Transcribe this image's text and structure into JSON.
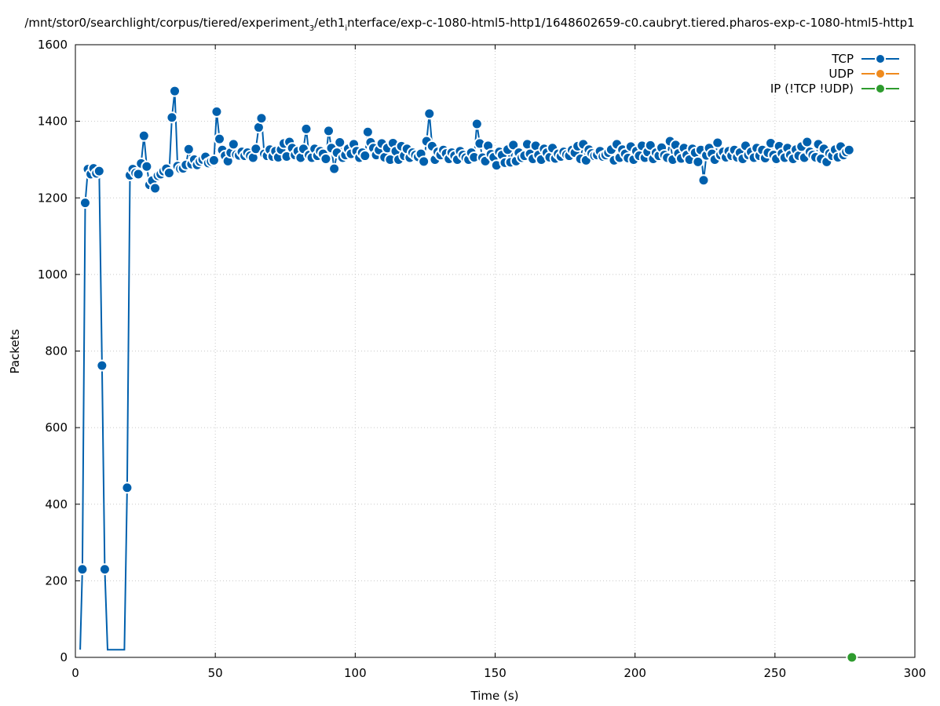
{
  "chart_data": {
    "type": "line",
    "title": "/mnt/stor0/searchlight/corpus/tiered/experiment_3/eth1_interface/exp-c-1080-html5-http1/1648602659-c0.caubryt.tiered.pharos-exp-c-1080-html5-http1",
    "title_parts": {
      "a": "/mnt/stor0/searchlight/corpus/tiered/experiment",
      "a_sub": "3",
      "b": "/eth1",
      "b_sub": "i",
      "c": "nterface/exp-c-1080-html5-http1/1648602659-c0.caubryt.tiered.pharos-exp-c-1080-html5-http1"
    },
    "xlabel": "Time (s)",
    "ylabel": "Packets",
    "xlim": [
      0,
      300
    ],
    "ylim": [
      0,
      1600
    ],
    "xticks": [
      0,
      50,
      100,
      150,
      200,
      250,
      300
    ],
    "yticks": [
      0,
      200,
      400,
      600,
      800,
      1000,
      1200,
      1400,
      1600
    ],
    "grid": true,
    "legend_position": "top-right",
    "series": [
      {
        "name": "TCP",
        "color": "#0060ad",
        "points": [
          [
            1.7,
            20
          ],
          [
            2.5,
            230
          ],
          [
            3.5,
            1187
          ],
          [
            4.5,
            1275
          ],
          [
            5.5,
            1262
          ],
          [
            6.5,
            1277
          ],
          [
            7.5,
            1264
          ],
          [
            8.5,
            1270
          ],
          [
            9.5,
            762
          ],
          [
            10.5,
            230
          ],
          [
            11.5,
            20
          ],
          [
            17.5,
            20
          ],
          [
            18.5,
            443
          ],
          [
            19.5,
            1259
          ],
          [
            20.5,
            1275
          ],
          [
            21.5,
            1265
          ],
          [
            22.5,
            1262
          ],
          [
            23.5,
            1290
          ],
          [
            24.5,
            1362
          ],
          [
            25.5,
            1282
          ],
          [
            26.5,
            1234
          ],
          [
            27.5,
            1245
          ],
          [
            28.5,
            1225
          ],
          [
            29.5,
            1258
          ],
          [
            30.5,
            1262
          ],
          [
            31.5,
            1270
          ],
          [
            32.5,
            1276
          ],
          [
            33.5,
            1265
          ],
          [
            34.5,
            1410
          ],
          [
            35.5,
            1479
          ],
          [
            36.5,
            1283
          ],
          [
            37.5,
            1276
          ],
          [
            38.5,
            1277
          ],
          [
            39.5,
            1286
          ],
          [
            40.5,
            1327
          ],
          [
            41.5,
            1288
          ],
          [
            42.5,
            1300
          ],
          [
            43.5,
            1286
          ],
          [
            44.5,
            1295
          ],
          [
            45.5,
            1300
          ],
          [
            46.5,
            1307
          ],
          [
            47.5,
            1291
          ],
          [
            48.5,
            1295
          ],
          [
            49.5,
            1298
          ],
          [
            50.5,
            1425
          ],
          [
            51.5,
            1354
          ],
          [
            52.5,
            1325
          ],
          [
            53.5,
            1310
          ],
          [
            54.5,
            1296
          ],
          [
            55.5,
            1318
          ],
          [
            56.5,
            1340
          ],
          [
            57.5,
            1313
          ],
          [
            58.5,
            1311
          ],
          [
            59.5,
            1320
          ],
          [
            60.5,
            1310
          ],
          [
            61.5,
            1318
          ],
          [
            62.5,
            1310
          ],
          [
            63.5,
            1305
          ],
          [
            64.5,
            1328
          ],
          [
            65.5,
            1384
          ],
          [
            66.5,
            1408
          ],
          [
            67.5,
            1315
          ],
          [
            68.5,
            1310
          ],
          [
            69.5,
            1326
          ],
          [
            70.5,
            1308
          ],
          [
            71.5,
            1322
          ],
          [
            72.5,
            1306
          ],
          [
            73.5,
            1326
          ],
          [
            74.5,
            1342
          ],
          [
            75.5,
            1308
          ],
          [
            76.5,
            1346
          ],
          [
            77.5,
            1330
          ],
          [
            78.5,
            1312
          ],
          [
            79.5,
            1322
          ],
          [
            80.5,
            1305
          ],
          [
            81.5,
            1328
          ],
          [
            82.5,
            1380
          ],
          [
            83.5,
            1312
          ],
          [
            84.5,
            1305
          ],
          [
            85.5,
            1328
          ],
          [
            86.5,
            1310
          ],
          [
            87.5,
            1322
          ],
          [
            88.5,
            1315
          ],
          [
            89.5,
            1302
          ],
          [
            90.5,
            1375
          ],
          [
            91.5,
            1330
          ],
          [
            92.5,
            1276
          ],
          [
            93.5,
            1318
          ],
          [
            94.5,
            1345
          ],
          [
            95.5,
            1305
          ],
          [
            96.5,
            1312
          ],
          [
            97.5,
            1328
          ],
          [
            98.5,
            1315
          ],
          [
            99.5,
            1340
          ],
          [
            100.5,
            1322
          ],
          [
            101.5,
            1305
          ],
          [
            102.5,
            1318
          ],
          [
            103.5,
            1310
          ],
          [
            104.5,
            1372
          ],
          [
            105.5,
            1345
          ],
          [
            106.5,
            1330
          ],
          [
            107.5,
            1312
          ],
          [
            108.5,
            1325
          ],
          [
            109.5,
            1342
          ],
          [
            110.5,
            1306
          ],
          [
            111.5,
            1330
          ],
          [
            112.5,
            1300
          ],
          [
            113.5,
            1343
          ],
          [
            114.5,
            1322
          ],
          [
            115.5,
            1300
          ],
          [
            116.5,
            1335
          ],
          [
            117.5,
            1310
          ],
          [
            118.5,
            1328
          ],
          [
            119.5,
            1305
          ],
          [
            120.5,
            1318
          ],
          [
            121.5,
            1312
          ],
          [
            122.5,
            1307
          ],
          [
            123.5,
            1315
          ],
          [
            124.5,
            1295
          ],
          [
            125.5,
            1348
          ],
          [
            126.5,
            1420
          ],
          [
            127.5,
            1335
          ],
          [
            128.5,
            1300
          ],
          [
            129.5,
            1320
          ],
          [
            130.5,
            1312
          ],
          [
            131.5,
            1325
          ],
          [
            132.5,
            1316
          ],
          [
            133.5,
            1302
          ],
          [
            134.5,
            1318
          ],
          [
            135.5,
            1310
          ],
          [
            136.5,
            1300
          ],
          [
            137.5,
            1322
          ],
          [
            138.5,
            1312
          ],
          [
            139.5,
            1305
          ],
          [
            140.5,
            1300
          ],
          [
            141.5,
            1318
          ],
          [
            142.5,
            1306
          ],
          [
            143.5,
            1393
          ],
          [
            144.5,
            1342
          ],
          [
            145.5,
            1305
          ],
          [
            146.5,
            1296
          ],
          [
            147.5,
            1336
          ],
          [
            148.5,
            1314
          ],
          [
            149.5,
            1306
          ],
          [
            150.5,
            1285
          ],
          [
            151.5,
            1320
          ],
          [
            152.5,
            1312
          ],
          [
            153.5,
            1292
          ],
          [
            154.5,
            1326
          ],
          [
            155.5,
            1293
          ],
          [
            156.5,
            1338
          ],
          [
            157.5,
            1296
          ],
          [
            158.5,
            1318
          ],
          [
            159.5,
            1305
          ],
          [
            160.5,
            1310
          ],
          [
            161.5,
            1340
          ],
          [
            162.5,
            1315
          ],
          [
            163.5,
            1302
          ],
          [
            164.5,
            1336
          ],
          [
            165.5,
            1312
          ],
          [
            166.5,
            1300
          ],
          [
            167.5,
            1328
          ],
          [
            168.5,
            1318
          ],
          [
            169.5,
            1306
          ],
          [
            170.5,
            1330
          ],
          [
            171.5,
            1303
          ],
          [
            172.5,
            1315
          ],
          [
            173.5,
            1308
          ],
          [
            174.5,
            1320
          ],
          [
            175.5,
            1313
          ],
          [
            176.5,
            1310
          ],
          [
            177.5,
            1325
          ],
          [
            178.5,
            1318
          ],
          [
            179.5,
            1335
          ],
          [
            180.5,
            1302
          ],
          [
            181.5,
            1340
          ],
          [
            182.5,
            1298
          ],
          [
            183.5,
            1326
          ],
          [
            184.5,
            1316
          ],
          [
            185.5,
            1310
          ],
          [
            186.5,
            1312
          ],
          [
            187.5,
            1322
          ],
          [
            188.5,
            1308
          ],
          [
            189.5,
            1312
          ],
          [
            190.5,
            1318
          ],
          [
            191.5,
            1326
          ],
          [
            192.5,
            1298
          ],
          [
            193.5,
            1340
          ],
          [
            194.5,
            1305
          ],
          [
            195.5,
            1326
          ],
          [
            196.5,
            1315
          ],
          [
            197.5,
            1304
          ],
          [
            198.5,
            1334
          ],
          [
            199.5,
            1300
          ],
          [
            200.5,
            1322
          ],
          [
            201.5,
            1310
          ],
          [
            202.5,
            1336
          ],
          [
            203.5,
            1305
          ],
          [
            204.5,
            1320
          ],
          [
            205.5,
            1337
          ],
          [
            206.5,
            1302
          ],
          [
            207.5,
            1318
          ],
          [
            208.5,
            1310
          ],
          [
            209.5,
            1331
          ],
          [
            210.5,
            1312
          ],
          [
            211.5,
            1305
          ],
          [
            212.5,
            1348
          ],
          [
            213.5,
            1300
          ],
          [
            214.5,
            1338
          ],
          [
            215.5,
            1316
          ],
          [
            216.5,
            1303
          ],
          [
            217.5,
            1330
          ],
          [
            218.5,
            1312
          ],
          [
            219.5,
            1300
          ],
          [
            220.5,
            1328
          ],
          [
            221.5,
            1318
          ],
          [
            222.5,
            1294
          ],
          [
            223.5,
            1325
          ],
          [
            224.5,
            1246
          ],
          [
            225.5,
            1311
          ],
          [
            226.5,
            1330
          ],
          [
            227.5,
            1315
          ],
          [
            228.5,
            1300
          ],
          [
            229.5,
            1344
          ],
          [
            230.5,
            1312
          ],
          [
            231.5,
            1320
          ],
          [
            232.5,
            1306
          ],
          [
            233.5,
            1322
          ],
          [
            234.5,
            1310
          ],
          [
            235.5,
            1325
          ],
          [
            236.5,
            1306
          ],
          [
            237.5,
            1318
          ],
          [
            238.5,
            1302
          ],
          [
            239.5,
            1336
          ],
          [
            240.5,
            1312
          ],
          [
            241.5,
            1320
          ],
          [
            242.5,
            1305
          ],
          [
            243.5,
            1330
          ],
          [
            244.5,
            1310
          ],
          [
            245.5,
            1325
          ],
          [
            246.5,
            1304
          ],
          [
            247.5,
            1318
          ],
          [
            248.5,
            1343
          ],
          [
            249.5,
            1312
          ],
          [
            250.5,
            1302
          ],
          [
            251.5,
            1335
          ],
          [
            252.5,
            1316
          ],
          [
            253.5,
            1305
          ],
          [
            254.5,
            1330
          ],
          [
            255.5,
            1312
          ],
          [
            256.5,
            1302
          ],
          [
            257.5,
            1326
          ],
          [
            258.5,
            1310
          ],
          [
            259.5,
            1334
          ],
          [
            260.5,
            1305
          ],
          [
            261.5,
            1346
          ],
          [
            262.5,
            1320
          ],
          [
            263.5,
            1312
          ],
          [
            264.5,
            1306
          ],
          [
            265.5,
            1340
          ],
          [
            266.5,
            1302
          ],
          [
            267.5,
            1328
          ],
          [
            268.5,
            1294
          ],
          [
            269.5,
            1316
          ],
          [
            270.5,
            1310
          ],
          [
            271.5,
            1326
          ],
          [
            272.5,
            1306
          ],
          [
            273.5,
            1334
          ],
          [
            274.5,
            1312
          ],
          [
            275.5,
            1320
          ],
          [
            276.5,
            1325
          ]
        ]
      },
      {
        "name": "UDP",
        "color": "#ef8a1d",
        "points": []
      },
      {
        "name": "IP (!TCP  !UDP)",
        "color": "#2e9b2e",
        "points": [
          [
            277.5,
            0
          ]
        ]
      }
    ]
  }
}
